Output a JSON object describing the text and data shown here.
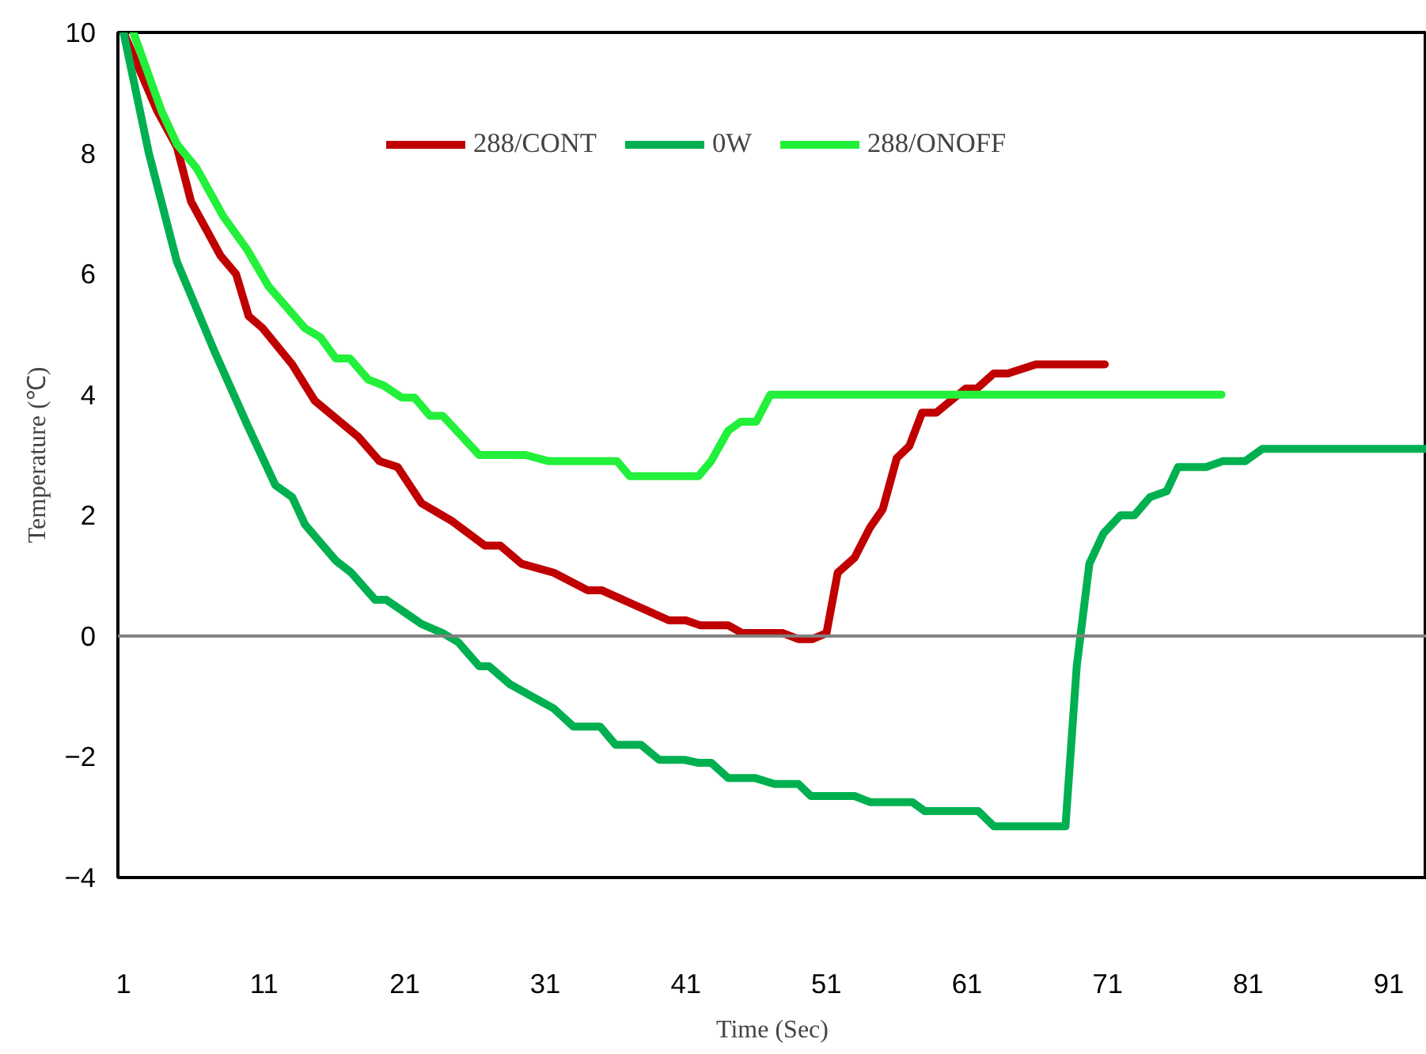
{
  "chart_data": {
    "type": "line",
    "xlabel": "Time (Sec)",
    "ylabel": "Temperature (℃)",
    "xlim": [
      0.6,
      93.7
    ],
    "xticks": [
      1,
      11,
      21,
      31,
      41,
      51,
      61,
      71,
      81,
      91
    ],
    "ylim": [
      -4,
      10
    ],
    "yticks": [
      -4,
      -2,
      0,
      2,
      4,
      6,
      8,
      10
    ],
    "grid": false,
    "legend": "top",
    "line_style": "solid",
    "marker": "none",
    "ref_lines": [
      {
        "axis": "y",
        "value": 0,
        "label": null,
        "color": "#808080"
      }
    ],
    "series": [
      {
        "name": "288/CONT",
        "color": "#c00000",
        "x": [
          1,
          3.4,
          4.8,
          5.8,
          7.9,
          9,
          9.9,
          10.9,
          13,
          14.6,
          17.7,
          19.2,
          20.5,
          22.2,
          24.4,
          26.7,
          27.8,
          29.3,
          31.6,
          34,
          35,
          39.8,
          41,
          42,
          44,
          45,
          47.9,
          49,
          50,
          51,
          51.8,
          53,
          54.1,
          55,
          56,
          56.9,
          57.8,
          58.8,
          60.9,
          61.7,
          62.9,
          63.9,
          65.9,
          70.8
        ],
        "values": [
          10,
          8.7,
          8.1,
          7.2,
          6.3,
          6,
          5.3,
          5.1,
          4.5,
          3.9,
          3.3,
          2.9,
          2.8,
          2.2,
          1.9,
          1.5,
          1.5,
          1.2,
          1.05,
          0.76,
          0.76,
          0.26,
          0.26,
          0.18,
          0.18,
          0.05,
          0.05,
          -0.05,
          -0.05,
          0.05,
          1.05,
          1.3,
          1.8,
          2.1,
          2.95,
          3.15,
          3.7,
          3.7,
          4.1,
          4.1,
          4.35,
          4.35,
          4.5,
          4.5
        ]
      },
      {
        "name": "0W",
        "color": "#00b050",
        "x": [
          1,
          2.8,
          4.8,
          7.5,
          9.8,
          11.8,
          13,
          13.9,
          16.1,
          17.2,
          18.9,
          19.7,
          22.2,
          23.7,
          24.8,
          26.3,
          27,
          28.5,
          31.6,
          33,
          34.9,
          36,
          37.8,
          39.1,
          40.9,
          41.9,
          42.8,
          44,
          45.9,
          47.3,
          49,
          49.9,
          53,
          54.1,
          57.1,
          58,
          61.8,
          62.9,
          68,
          68.8,
          69.7,
          70.7,
          71.9,
          72.9,
          74,
          75.2,
          76,
          78,
          79.2,
          80.8,
          82,
          93.7
        ],
        "values": [
          10,
          8,
          6.2,
          4.7,
          3.5,
          2.5,
          2.3,
          1.85,
          1.25,
          1.05,
          0.6,
          0.6,
          0.2,
          0.05,
          -0.1,
          -0.5,
          -0.5,
          -0.8,
          -1.2,
          -1.5,
          -1.5,
          -1.8,
          -1.8,
          -2.05,
          -2.05,
          -2.1,
          -2.1,
          -2.35,
          -2.35,
          -2.45,
          -2.45,
          -2.65,
          -2.65,
          -2.75,
          -2.75,
          -2.9,
          -2.9,
          -3.15,
          -3.15,
          -0.5,
          1.2,
          1.7,
          2,
          2,
          2.3,
          2.4,
          2.8,
          2.8,
          2.9,
          2.9,
          3.1,
          3.1
        ]
      },
      {
        "name": "288/ONOFF",
        "color": "#22f03a",
        "x": [
          1.7,
          3.7,
          4.8,
          6.2,
          8.1,
          9.8,
          11.3,
          13.9,
          15,
          16.1,
          17.1,
          18.4,
          19.5,
          20.8,
          21.7,
          22.8,
          23.7,
          26.3,
          29.6,
          31.2,
          36.1,
          37,
          41.9,
          42.8,
          44,
          44.9,
          46,
          47,
          79.1
        ],
        "values": [
          10,
          8.7,
          8.15,
          7.75,
          6.95,
          6.4,
          5.8,
          5.1,
          4.95,
          4.6,
          4.6,
          4.25,
          4.15,
          3.95,
          3.95,
          3.65,
          3.65,
          3,
          3,
          2.9,
          2.9,
          2.65,
          2.65,
          2.9,
          3.4,
          3.55,
          3.55,
          4,
          4
        ]
      }
    ]
  }
}
